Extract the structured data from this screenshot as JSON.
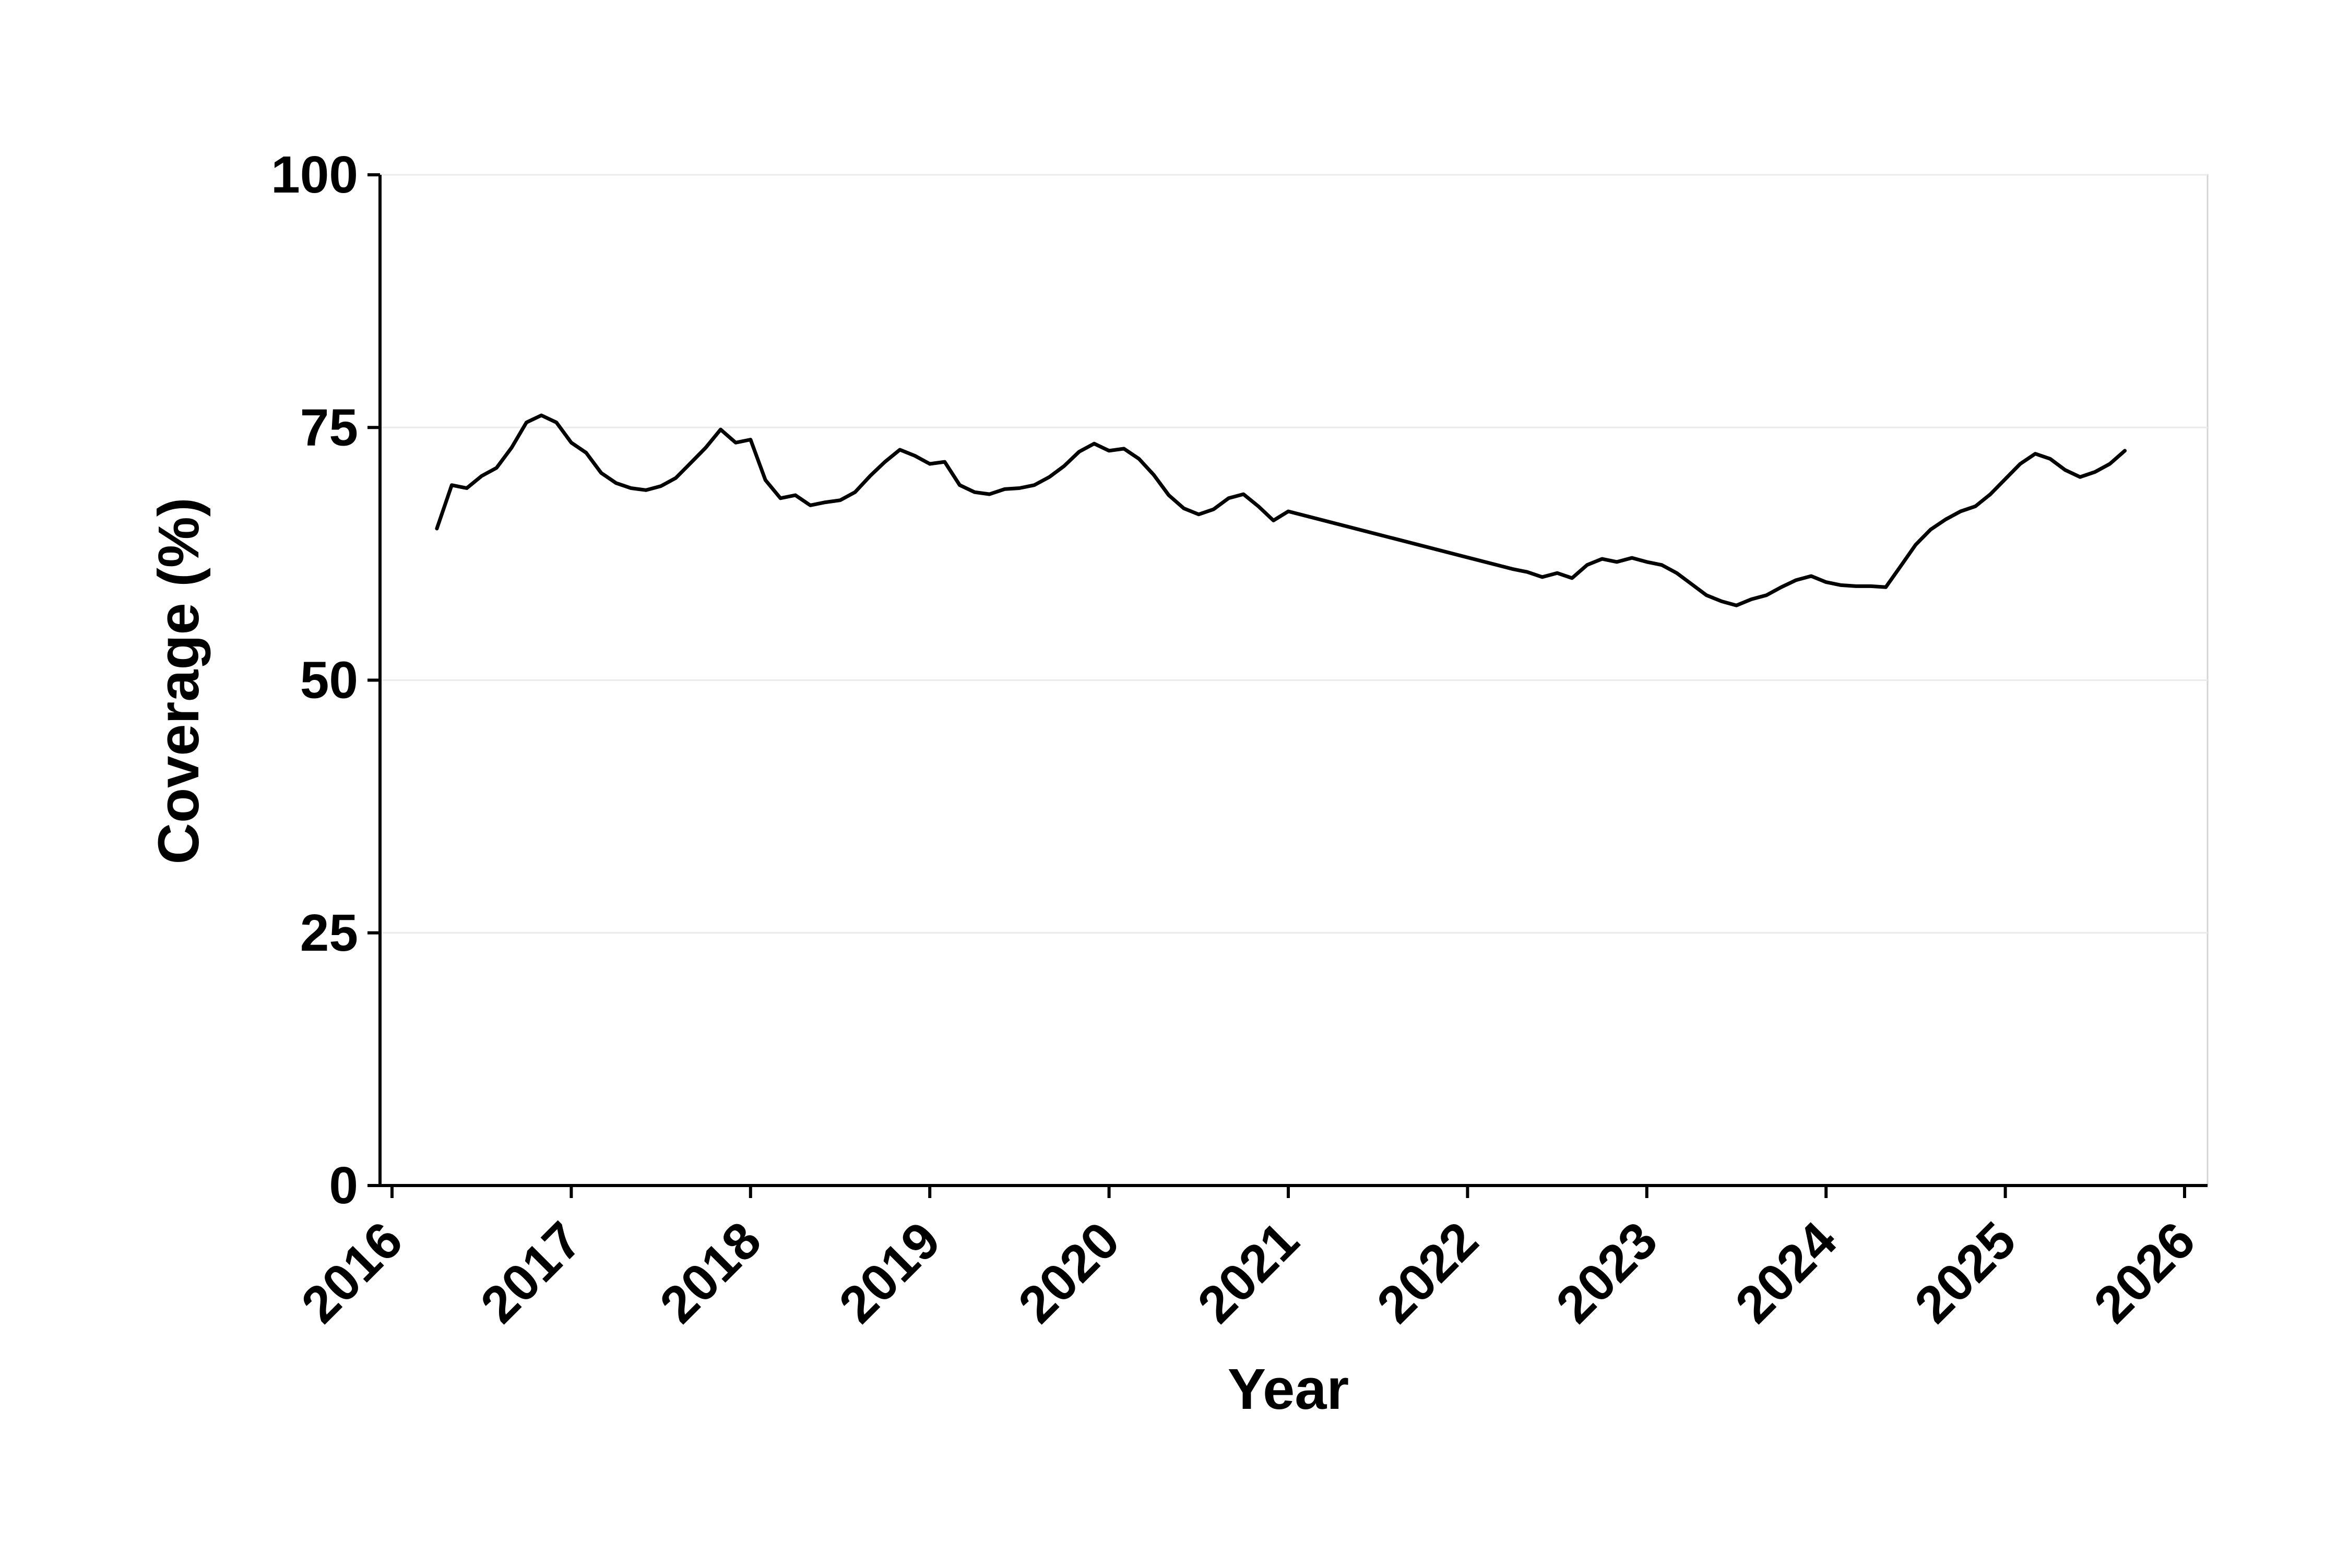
{
  "figure": {
    "background": "#ffffff",
    "panel_border_color": "#d4d4d4",
    "grid_color": "#ebebeb",
    "axis_color": "#000000",
    "text_color": "#000000"
  },
  "chart_data": {
    "type": "line",
    "title": "",
    "xlabel": "Year",
    "ylabel": "Coverage (%)",
    "xlim": [
      2016,
      2026
    ],
    "ylim": [
      0,
      100
    ],
    "x_ticks": [
      2016,
      2017,
      2018,
      2019,
      2020,
      2021,
      2022,
      2023,
      2024,
      2025,
      2026
    ],
    "y_ticks": [
      0,
      25,
      50,
      75,
      100
    ],
    "grid": "horizontal",
    "legend": "none",
    "line_color": "#000000",
    "series": [
      {
        "name": "coverage",
        "x": [
          2016.25,
          2016.333,
          2016.417,
          2016.5,
          2016.583,
          2016.667,
          2016.75,
          2016.833,
          2016.917,
          2017.0,
          2017.083,
          2017.167,
          2017.25,
          2017.333,
          2017.417,
          2017.5,
          2017.583,
          2017.667,
          2017.75,
          2017.833,
          2017.917,
          2018.0,
          2018.083,
          2018.167,
          2018.25,
          2018.333,
          2018.417,
          2018.5,
          2018.583,
          2018.667,
          2018.75,
          2018.833,
          2018.917,
          2019.0,
          2019.083,
          2019.167,
          2019.25,
          2019.333,
          2019.417,
          2019.5,
          2019.583,
          2019.667,
          2019.75,
          2019.833,
          2019.917,
          2020.0,
          2020.083,
          2020.167,
          2020.25,
          2020.333,
          2020.417,
          2020.5,
          2020.583,
          2020.667,
          2020.75,
          2020.833,
          2020.917,
          2021.0,
          2022.25,
          2022.333,
          2022.417,
          2022.5,
          2022.583,
          2022.667,
          2022.75,
          2022.833,
          2022.917,
          2023.0,
          2023.083,
          2023.167,
          2023.25,
          2023.333,
          2023.417,
          2023.5,
          2023.583,
          2023.667,
          2023.75,
          2023.833,
          2023.917,
          2024.0,
          2024.083,
          2024.167,
          2024.25,
          2024.333,
          2024.417,
          2024.5,
          2024.583,
          2024.667,
          2024.75,
          2024.833,
          2024.917,
          2025.0,
          2025.083,
          2025.167,
          2025.25,
          2025.333,
          2025.417,
          2025.5,
          2025.583,
          2025.667
        ],
        "y": [
          65.0,
          69.3,
          69.0,
          70.2,
          71.0,
          73.0,
          75.5,
          76.2,
          75.5,
          73.5,
          72.5,
          70.5,
          69.5,
          69.0,
          68.8,
          69.2,
          70.0,
          71.5,
          73.0,
          74.8,
          73.5,
          73.8,
          69.8,
          68.0,
          68.3,
          67.3,
          67.6,
          67.8,
          68.6,
          70.2,
          71.6,
          72.8,
          72.2,
          71.4,
          71.6,
          69.3,
          68.6,
          68.4,
          68.9,
          69.0,
          69.3,
          70.1,
          71.2,
          72.6,
          73.4,
          72.7,
          72.9,
          71.9,
          70.3,
          68.3,
          67.0,
          66.4,
          66.9,
          68.0,
          68.4,
          67.2,
          65.8,
          66.7,
          61.0,
          60.7,
          60.2,
          60.6,
          60.1,
          61.4,
          62.0,
          61.7,
          62.1,
          61.7,
          61.4,
          60.6,
          59.5,
          58.4,
          57.8,
          57.4,
          58.0,
          58.4,
          59.2,
          59.9,
          60.3,
          59.7,
          59.4,
          59.3,
          59.3,
          59.2,
          61.3,
          63.4,
          64.9,
          65.9,
          66.7,
          67.2,
          68.4,
          69.9,
          71.4,
          72.4,
          71.9,
          70.8,
          70.1,
          70.6,
          71.4,
          72.7
        ]
      }
    ]
  }
}
